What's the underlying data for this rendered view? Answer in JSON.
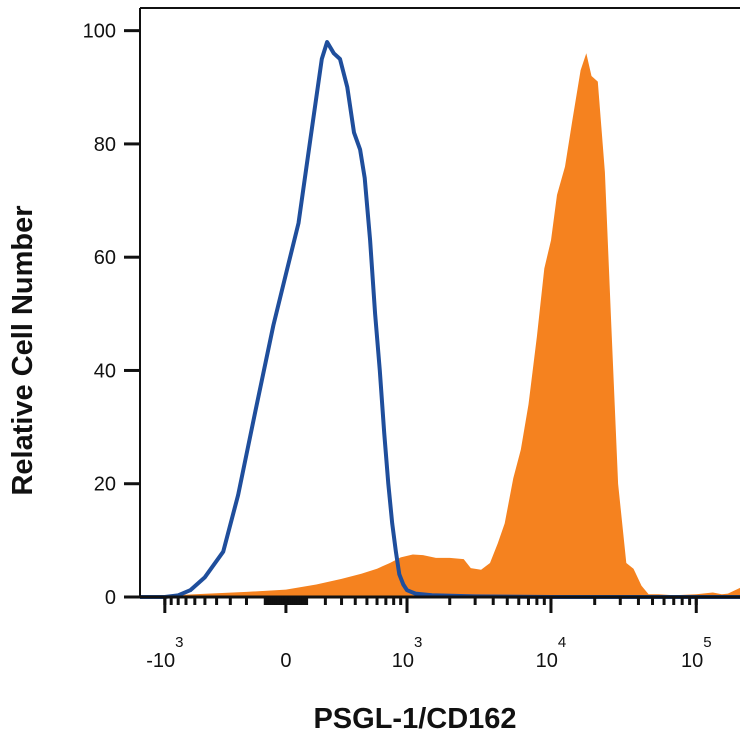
{
  "chart_data": {
    "type": "area",
    "xlabel": "PSGL-1/CD162",
    "ylabel": "Relative Cell Number",
    "x_scale": "biexponential",
    "xlim": [
      -1500,
      200000
    ],
    "ylim": [
      0,
      104
    ],
    "y_ticks": [
      0,
      20,
      40,
      60,
      80,
      100
    ],
    "x_ticks": [
      {
        "value": -1000,
        "base": "-10",
        "exp": "3"
      },
      {
        "value": 0,
        "base": "0",
        "exp": ""
      },
      {
        "value": 1000,
        "base": "10",
        "exp": "3"
      },
      {
        "value": 10000,
        "base": "10",
        "exp": "4"
      },
      {
        "value": 100000,
        "base": "10",
        "exp": "5"
      }
    ],
    "grid": false,
    "legend": "none",
    "series": [
      {
        "style": "filled",
        "color": "#f5821f",
        "x": [
          -1500,
          -600,
          -200,
          0,
          150,
          300,
          450,
          600,
          750,
          900,
          1100,
          1300,
          1600,
          2000,
          2500,
          2800,
          3300,
          3800,
          4300,
          4800,
          5500,
          6200,
          7000,
          8000,
          9000,
          10000,
          11000,
          12500,
          14000,
          16000,
          17500,
          19000,
          21000,
          23500,
          26000,
          29000,
          33000,
          37000,
          42000,
          47000,
          55000,
          70000,
          100000,
          130000,
          150000,
          165000,
          200000
        ],
        "y": [
          0,
          0.5,
          0.9,
          1.3,
          2.2,
          3.2,
          4.1,
          5,
          6,
          7,
          7.5,
          7.4,
          6.9,
          6.9,
          6.7,
          5.1,
          4.8,
          6,
          9.5,
          13,
          21,
          26,
          34,
          46,
          58,
          63,
          71,
          76,
          84,
          93,
          96,
          92,
          91,
          75,
          48,
          20,
          6,
          5,
          2,
          0.5,
          0.5,
          0.3,
          0.5,
          0.8,
          0.5,
          0.6,
          1.6
        ]
      },
      {
        "style": "outline",
        "color": "#1f4e9c",
        "x": [
          -1500,
          -1000,
          -800,
          -650,
          -500,
          -350,
          -250,
          -150,
          -60,
          0,
          60,
          120,
          180,
          210,
          250,
          290,
          340,
          390,
          440,
          480,
          530,
          580,
          630,
          680,
          730,
          780,
          830,
          880,
          940,
          1000,
          1150,
          1500,
          3000,
          10000,
          100000,
          200000
        ],
        "y": [
          0,
          0,
          0.3,
          1.2,
          3.5,
          8,
          18,
          33,
          48,
          57,
          66,
          81,
          95,
          98,
          96,
          95,
          90,
          82,
          79,
          74,
          63,
          50,
          40,
          29,
          20,
          13,
          8,
          4,
          2.2,
          1.2,
          0.6,
          0.3,
          0.1,
          0,
          0,
          0
        ]
      }
    ]
  }
}
